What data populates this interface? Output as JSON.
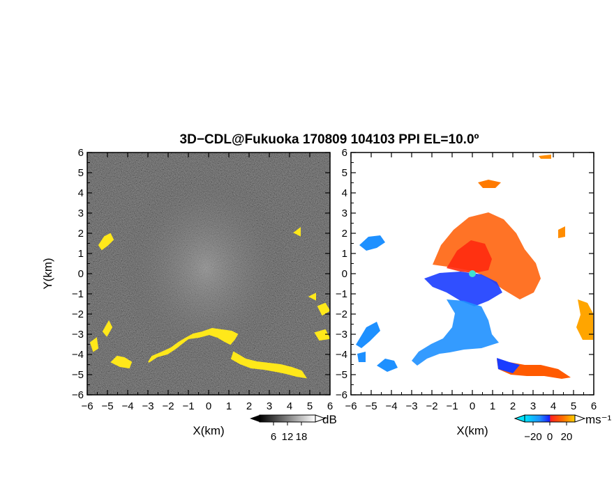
{
  "title": "3D−CDL@Fukuoka 170809 104103 PPI EL=10.0º",
  "chart_data": [
    {
      "type": "heatmap",
      "name": "reflectivity-ppi",
      "xlabel": "X(km)",
      "ylabel": "Y(km)",
      "xlim": [
        -6,
        6
      ],
      "ylim": [
        -6,
        6
      ],
      "x_ticks": [
        "−6",
        "−5",
        "−4",
        "−3",
        "−2",
        "−1",
        "0",
        "1",
        "2",
        "3",
        "4",
        "5",
        "6"
      ],
      "y_ticks": [
        "6",
        "5",
        "4",
        "3",
        "2",
        "1",
        "0",
        "−1",
        "−2",
        "−3",
        "−4",
        "−5",
        "−6"
      ],
      "colorbar": {
        "unit": "dB",
        "ticks": [
          "6",
          "12",
          "18"
        ],
        "range": [
          0,
          24
        ]
      },
      "colors": {
        "background": "#2a2a2a",
        "echo": "#ffe81a"
      }
    },
    {
      "type": "heatmap",
      "name": "doppler-velocity-ppi",
      "xlabel": "X(km)",
      "xlim": [
        -6,
        6
      ],
      "ylim": [
        -6,
        6
      ],
      "x_ticks": [
        "−6",
        "−5",
        "−4",
        "−3",
        "−2",
        "−1",
        "0",
        "1",
        "2",
        "3",
        "4",
        "5",
        "6"
      ],
      "y_ticks": [
        "6",
        "5",
        "4",
        "3",
        "2",
        "1",
        "0",
        "−1",
        "−2",
        "−3",
        "−4",
        "−5",
        "−6"
      ],
      "colorbar": {
        "unit": "ms⁻¹",
        "ticks": [
          "−20",
          "0",
          "20"
        ],
        "range": [
          -30,
          30
        ]
      },
      "colors": {
        "toward": "#1e90ff",
        "near_zero": "#1a3cff",
        "away": "#ff5a00",
        "far": "#ffa500",
        "radar": "#40e0d0"
      }
    }
  ]
}
